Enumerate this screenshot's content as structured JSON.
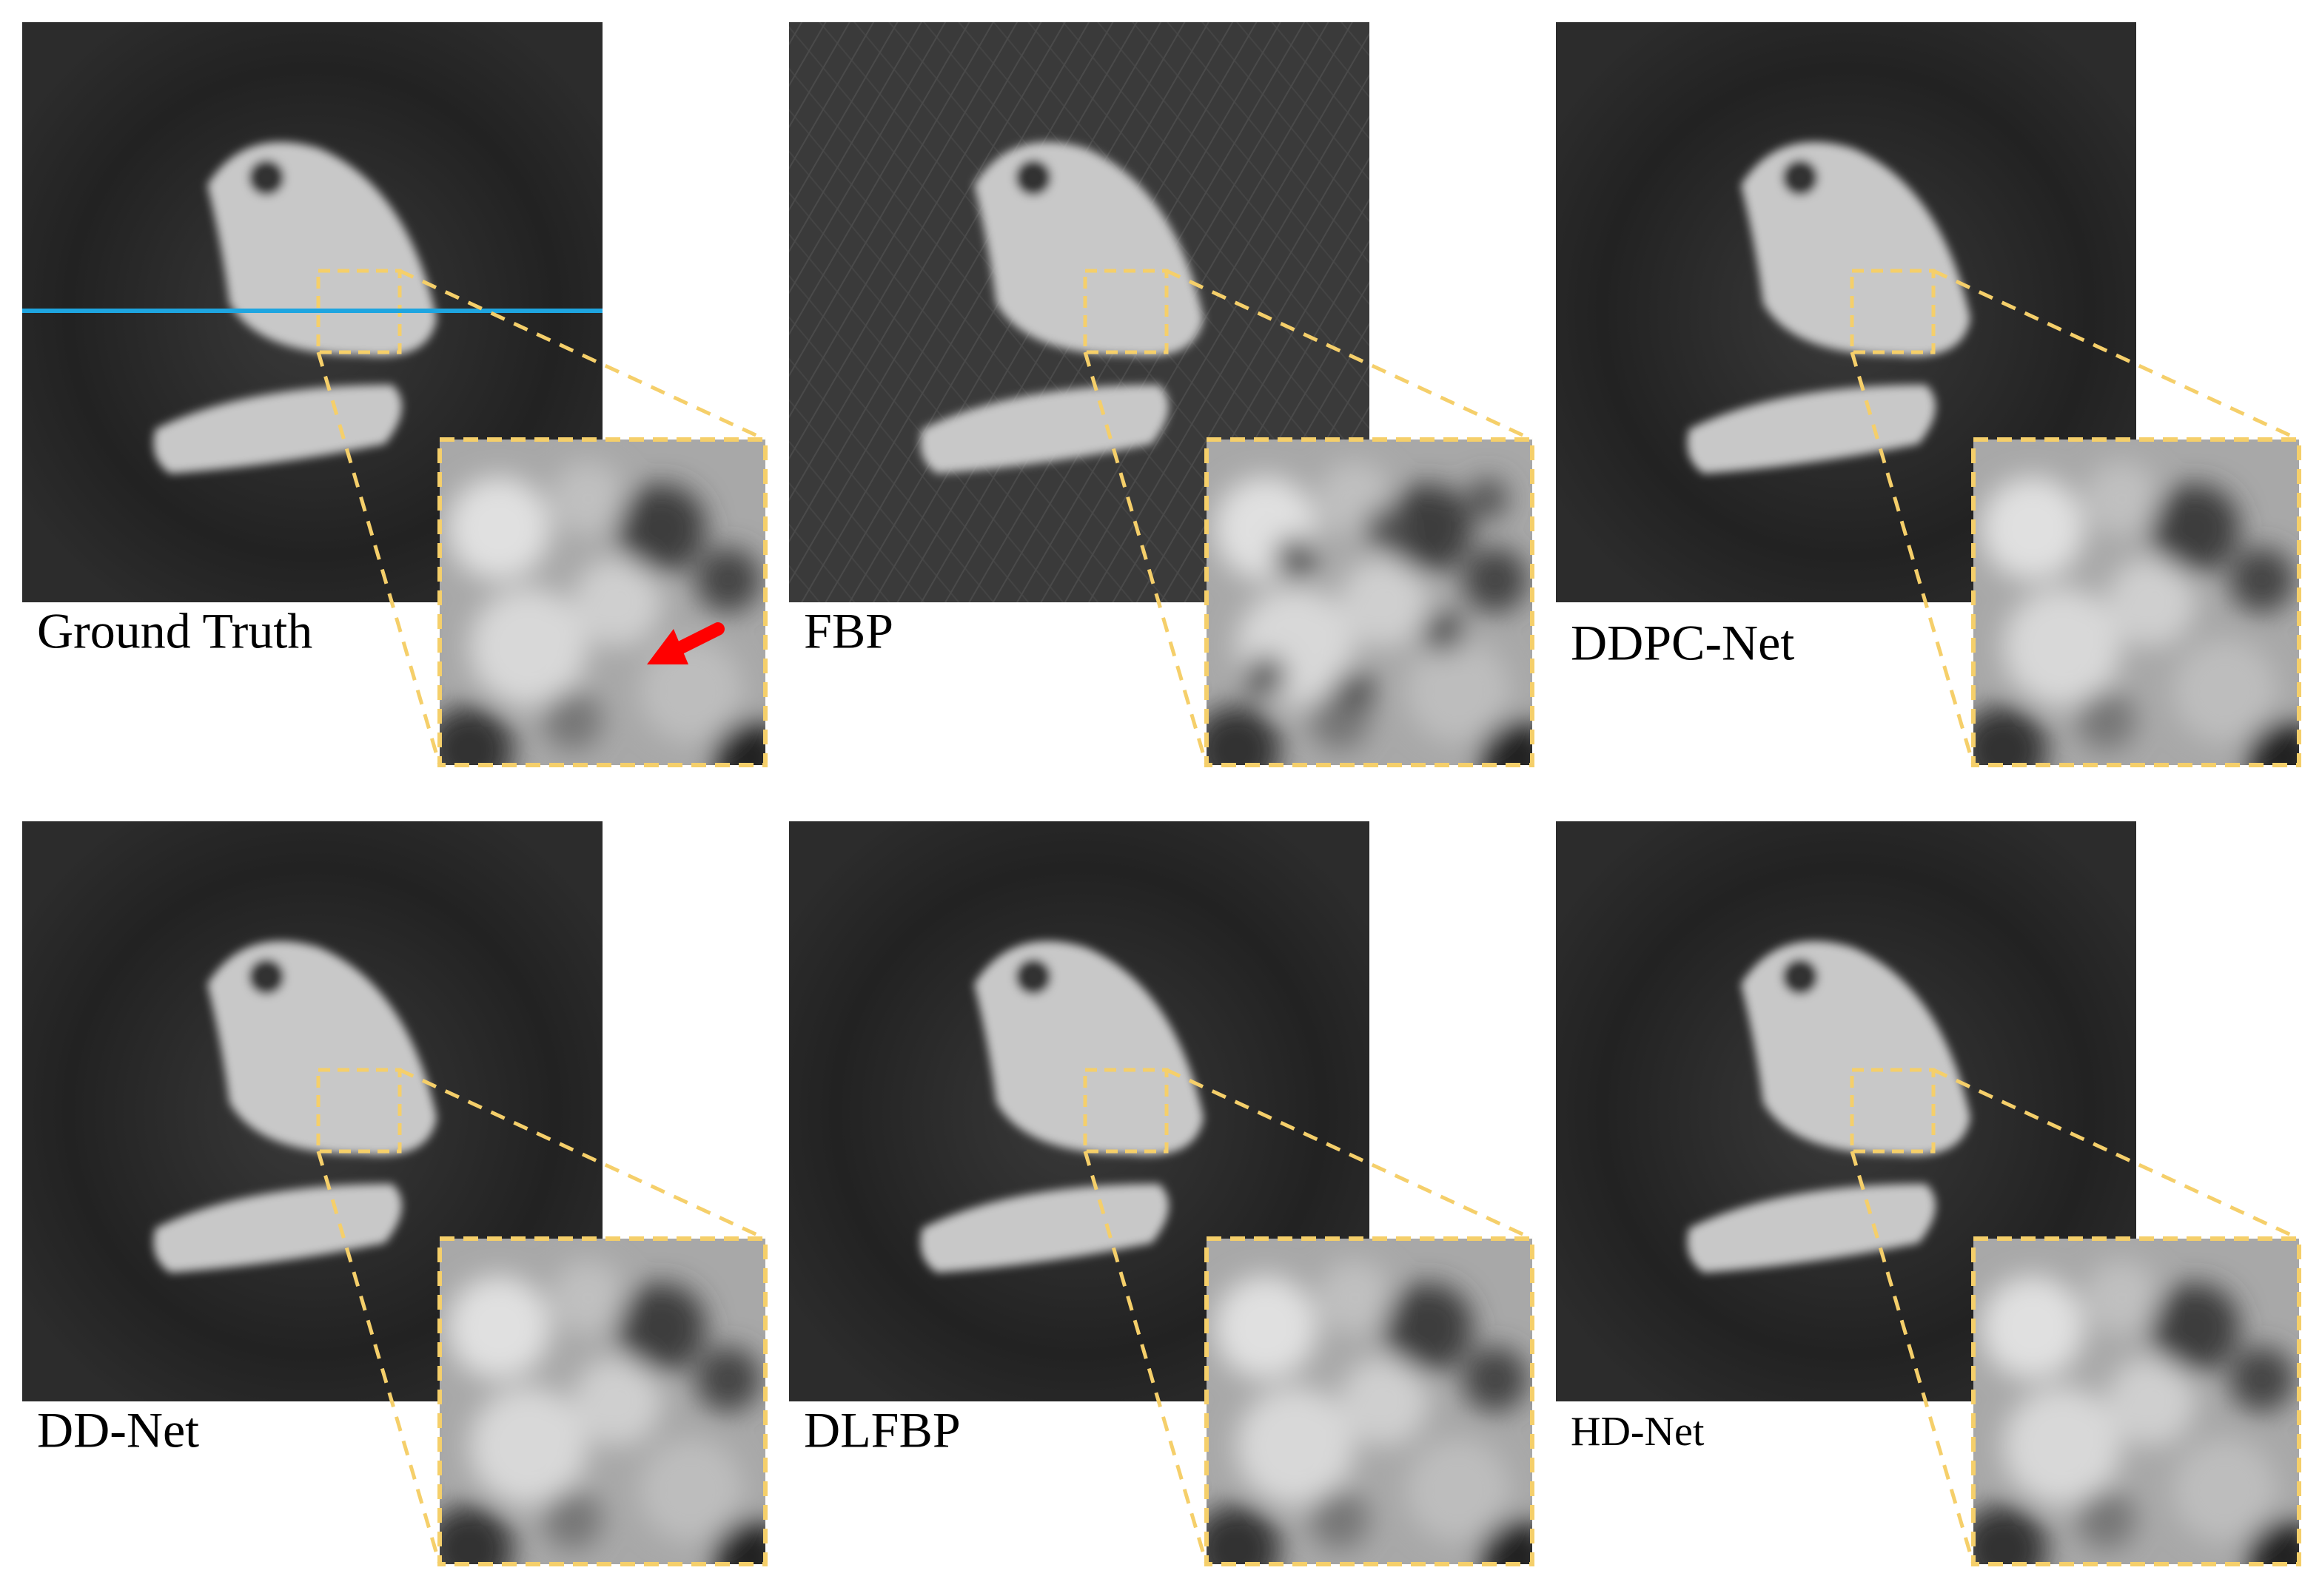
{
  "panels": [
    {
      "label": "Ground Truth"
    },
    {
      "label": "FBP"
    },
    {
      "label": "DDPC-Net"
    },
    {
      "label": "DD-Net"
    },
    {
      "label": "DLFBP"
    },
    {
      "label": "HD-Net"
    }
  ]
}
